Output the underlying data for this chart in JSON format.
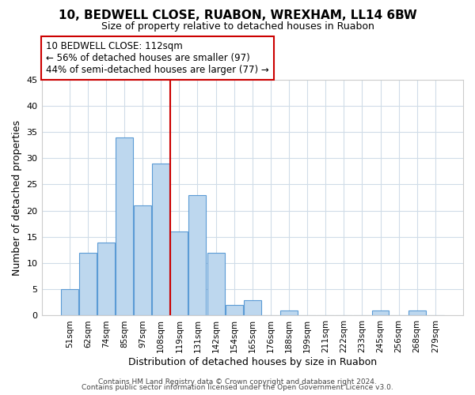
{
  "title": "10, BEDWELL CLOSE, RUABON, WREXHAM, LL14 6BW",
  "subtitle": "Size of property relative to detached houses in Ruabon",
  "xlabel": "Distribution of detached houses by size in Ruabon",
  "ylabel": "Number of detached properties",
  "bar_color": "#bdd7ee",
  "bar_edge_color": "#5b9bd5",
  "background_color": "#ffffff",
  "grid_color": "#d0dce8",
  "vline_color": "#cc0000",
  "vline_x_index": 5.5,
  "categories": [
    "51sqm",
    "62sqm",
    "74sqm",
    "85sqm",
    "97sqm",
    "108sqm",
    "119sqm",
    "131sqm",
    "142sqm",
    "154sqm",
    "165sqm",
    "176sqm",
    "188sqm",
    "199sqm",
    "211sqm",
    "222sqm",
    "233sqm",
    "245sqm",
    "256sqm",
    "268sqm",
    "279sqm"
  ],
  "values": [
    5,
    12,
    14,
    34,
    21,
    29,
    16,
    23,
    12,
    2,
    3,
    0,
    1,
    0,
    0,
    0,
    0,
    1,
    0,
    1,
    0
  ],
  "ylim": [
    0,
    45
  ],
  "yticks": [
    0,
    5,
    10,
    15,
    20,
    25,
    30,
    35,
    40,
    45
  ],
  "annotation_title": "10 BEDWELL CLOSE: 112sqm",
  "annotation_line1": "← 56% of detached houses are smaller (97)",
  "annotation_line2": "44% of semi-detached houses are larger (77) →",
  "footer1": "Contains HM Land Registry data © Crown copyright and database right 2024.",
  "footer2": "Contains public sector information licensed under the Open Government Licence v3.0.",
  "title_fontsize": 11,
  "subtitle_fontsize": 9,
  "axis_label_fontsize": 9,
  "tick_fontsize": 8,
  "xtick_fontsize": 7.5,
  "footer_fontsize": 6.5
}
